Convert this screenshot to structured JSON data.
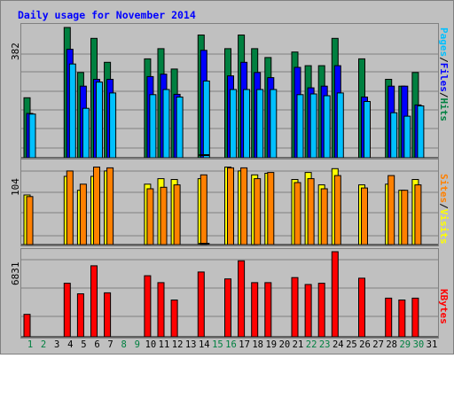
{
  "title": "Daily usage for November 2014",
  "chart_data": [
    {
      "type": "bar",
      "panel": "top",
      "y_max_label": "382",
      "ylim": [
        0,
        382
      ],
      "grid": true,
      "side_labels": [
        "Pages",
        "Files",
        "Hits"
      ],
      "categories": [
        "1",
        "2",
        "3",
        "4",
        "5",
        "6",
        "7",
        "8",
        "9",
        "10",
        "11",
        "12",
        "13",
        "14",
        "15",
        "16",
        "17",
        "18",
        "19",
        "20",
        "21",
        "22",
        "23",
        "24",
        "25",
        "26",
        "27",
        "28",
        "29",
        "30",
        "31"
      ],
      "series": [
        {
          "name": "Hits",
          "color": "#008040",
          "values": [
            176,
            0,
            0,
            382,
            250,
            350,
            280,
            0,
            0,
            290,
            320,
            260,
            0,
            360,
            0,
            320,
            360,
            320,
            294,
            0,
            310,
            270,
            270,
            350,
            0,
            290,
            0,
            230,
            210,
            250,
            0
          ]
        },
        {
          "name": "Files",
          "color": "#0000FF",
          "values": [
            130,
            0,
            0,
            318,
            210,
            230,
            230,
            0,
            0,
            238,
            245,
            186,
            0,
            315,
            0,
            240,
            280,
            250,
            235,
            0,
            265,
            205,
            210,
            270,
            0,
            178,
            0,
            210,
            210,
            155,
            0
          ]
        },
        {
          "name": "Pages",
          "color": "#00C0FF",
          "values": [
            128,
            0,
            0,
            275,
            145,
            222,
            190,
            0,
            0,
            185,
            200,
            178,
            0,
            225,
            0,
            200,
            200,
            200,
            200,
            0,
            185,
            187,
            182,
            190,
            0,
            165,
            0,
            132,
            122,
            152,
            0
          ]
        }
      ]
    },
    {
      "type": "bar",
      "panel": "middle",
      "y_max_label": "104",
      "ylim": [
        0,
        104
      ],
      "grid": true,
      "side_labels": [
        "Sites",
        "Visits"
      ],
      "categories": [
        "1",
        "2",
        "3",
        "4",
        "5",
        "6",
        "7",
        "8",
        "9",
        "10",
        "11",
        "12",
        "13",
        "14",
        "15",
        "16",
        "17",
        "18",
        "19",
        "20",
        "21",
        "22",
        "23",
        "24",
        "25",
        "26",
        "27",
        "28",
        "29",
        "30",
        "31"
      ],
      "series": [
        {
          "name": "Visits",
          "color": "#FFFF00",
          "values": [
            64,
            0,
            0,
            88,
            70,
            88,
            95,
            0,
            0,
            78,
            85,
            84,
            0,
            85,
            0,
            100,
            95,
            90,
            92,
            0,
            84,
            93,
            77,
            98,
            0,
            77,
            0,
            78,
            70,
            84,
            0
          ]
        },
        {
          "name": "Sites",
          "color": "#FF8000",
          "values": [
            62,
            0,
            0,
            95,
            78,
            100,
            99,
            0,
            0,
            72,
            74,
            77,
            0,
            90,
            0,
            99,
            99,
            85,
            93,
            0,
            80,
            85,
            72,
            89,
            0,
            73,
            0,
            89,
            70,
            77,
            0
          ]
        }
      ]
    },
    {
      "type": "bar",
      "panel": "bottom",
      "y_max_label": "6831",
      "ylim": [
        0,
        6831
      ],
      "grid": true,
      "side_labels": [
        "KBytes"
      ],
      "categories": [
        "1",
        "2",
        "3",
        "4",
        "5",
        "6",
        "7",
        "8",
        "9",
        "10",
        "11",
        "12",
        "13",
        "14",
        "15",
        "16",
        "17",
        "18",
        "19",
        "20",
        "21",
        "22",
        "23",
        "24",
        "25",
        "26",
        "27",
        "28",
        "29",
        "30",
        "31"
      ],
      "series": [
        {
          "name": "KBytes",
          "color": "#FF0000",
          "values": [
            1800,
            0,
            0,
            4300,
            3450,
            5700,
            3530,
            0,
            0,
            4900,
            4350,
            2950,
            0,
            5200,
            0,
            4650,
            6100,
            4350,
            4350,
            0,
            4750,
            4200,
            4300,
            6831,
            0,
            4700,
            0,
            3100,
            2950,
            3100,
            0
          ]
        }
      ]
    }
  ],
  "day_labels": [
    {
      "text": "1",
      "color": "#008040"
    },
    {
      "text": "2",
      "color": "#008040"
    },
    {
      "text": "3",
      "color": "#000000"
    },
    {
      "text": "4",
      "color": "#000000"
    },
    {
      "text": "5",
      "color": "#000000"
    },
    {
      "text": "6",
      "color": "#000000"
    },
    {
      "text": "7",
      "color": "#000000"
    },
    {
      "text": "8",
      "color": "#008040"
    },
    {
      "text": "9",
      "color": "#008040"
    },
    {
      "text": "10",
      "color": "#000000"
    },
    {
      "text": "11",
      "color": "#000000"
    },
    {
      "text": "12",
      "color": "#000000"
    },
    {
      "text": "13",
      "color": "#000000"
    },
    {
      "text": "14",
      "color": "#000000"
    },
    {
      "text": "15",
      "color": "#008040"
    },
    {
      "text": "16",
      "color": "#008040"
    },
    {
      "text": "17",
      "color": "#000000"
    },
    {
      "text": "18",
      "color": "#000000"
    },
    {
      "text": "19",
      "color": "#000000"
    },
    {
      "text": "20",
      "color": "#000000"
    },
    {
      "text": "21",
      "color": "#000000"
    },
    {
      "text": "22",
      "color": "#008040"
    },
    {
      "text": "23",
      "color": "#008040"
    },
    {
      "text": "24",
      "color": "#000000"
    },
    {
      "text": "25",
      "color": "#000000"
    },
    {
      "text": "26",
      "color": "#000000"
    },
    {
      "text": "27",
      "color": "#000000"
    },
    {
      "text": "28",
      "color": "#000000"
    },
    {
      "text": "29",
      "color": "#008040"
    },
    {
      "text": "30",
      "color": "#008040"
    },
    {
      "text": "31",
      "color": "#000000"
    }
  ],
  "colors": {
    "background": "#C0C0C0",
    "grid": "#808080",
    "title": "#0000FF",
    "separator": "#000000"
  }
}
